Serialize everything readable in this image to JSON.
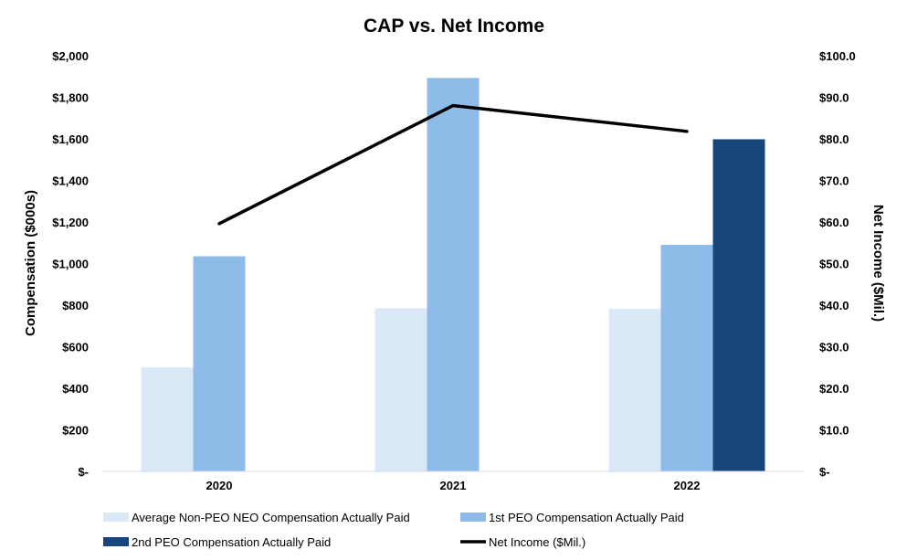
{
  "chart_data": {
    "type": "bar",
    "title": "CAP vs. Net Income",
    "categories": [
      "2020",
      "2021",
      "2022"
    ],
    "ylabel": "Compensation ($000s)",
    "y2label": "Net Income ($Mil.)",
    "ylim": [
      0,
      2000
    ],
    "y2lim": [
      0,
      100
    ],
    "y_ticks": [
      "$-",
      "$200",
      "$400",
      "$600",
      "$800",
      "$1,000",
      "$1,200",
      "$1,400",
      "$1,600",
      "$1,800",
      "$2,000"
    ],
    "y2_ticks": [
      "$-",
      "$10.0",
      "$20.0",
      "$30.0",
      "$40.0",
      "$50.0",
      "$60.0",
      "$70.0",
      "$80.0",
      "$90.0",
      "$100.0"
    ],
    "grid": false,
    "legend_position": "bottom",
    "series": [
      {
        "name": "Average Non-PEO NEO Compensation Actually Paid",
        "type": "bar",
        "axis": "left",
        "color": "#dae8f7",
        "values": [
          500,
          785,
          782
        ]
      },
      {
        "name": "1st PEO Compensation Actually Paid",
        "type": "bar",
        "axis": "left",
        "color": "#8fbbe9",
        "values": [
          1035,
          1893,
          1090
        ]
      },
      {
        "name": "2nd PEO Compensation Actually Paid",
        "type": "bar",
        "axis": "left",
        "color": "#17477a",
        "values": [
          null,
          null,
          1598
        ]
      },
      {
        "name": "Net Income ($Mil.)",
        "type": "line",
        "axis": "right",
        "color": "#000000",
        "values": [
          59.6,
          88.0,
          81.8
        ]
      }
    ]
  }
}
